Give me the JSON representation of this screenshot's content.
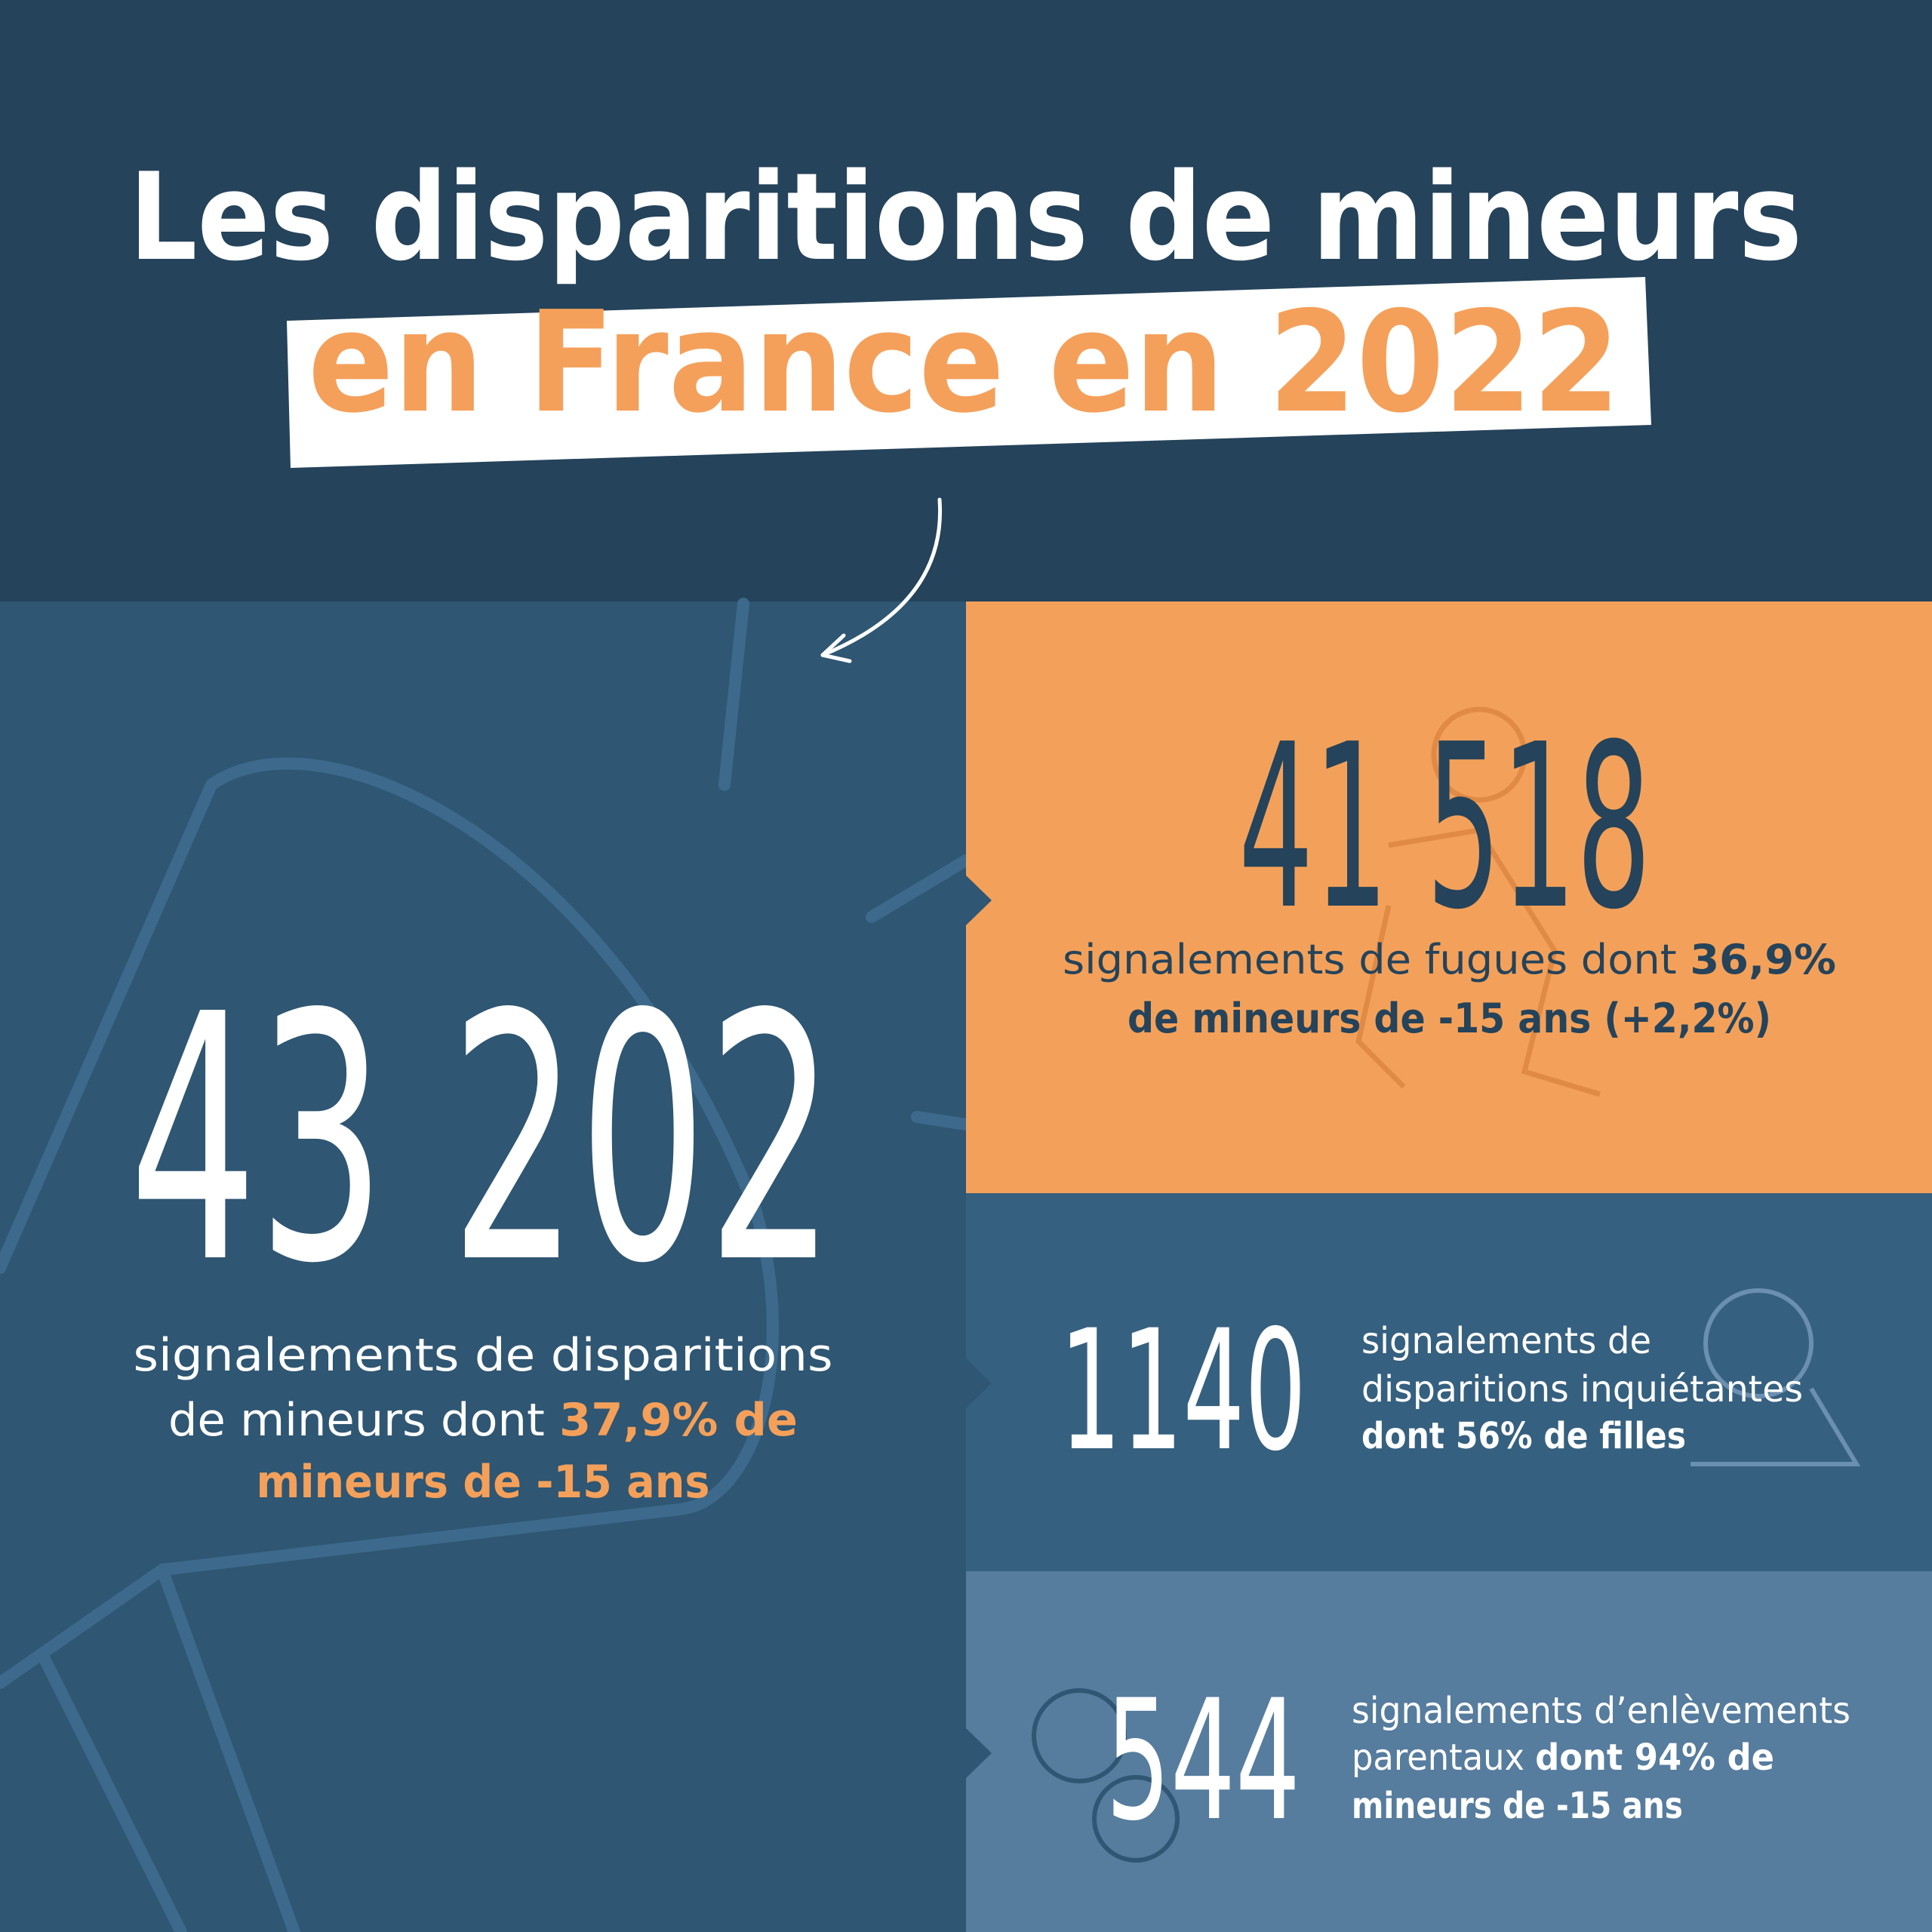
{
  "header": {
    "title_line1": "Les disparitions de mineurs",
    "title_line2": "en France en 2022"
  },
  "main_stat": {
    "number": "43 202",
    "text_1": "signalements de disparitions",
    "text_2": "de mineurs dont ",
    "highlight_1": "37,9% de",
    "highlight_2": "mineurs de -15 ans"
  },
  "fugues": {
    "number": "41 518",
    "text_1": "signalements de fugues dont ",
    "bold_1": "36,9%",
    "bold_2": "de mineurs de -15 ans (+2,2%)"
  },
  "inquietantes": {
    "number": "1140",
    "text_1": "signalements de",
    "text_2": "disparitions inquiétantes",
    "bold_1": "dont 56% de filles"
  },
  "enlevements": {
    "number": "544",
    "text_1": "signalements d’enlèvements",
    "text_2": "parentaux ",
    "bold_1": "dont 94% de",
    "bold_2": "mineurs de -15 ans"
  }
}
